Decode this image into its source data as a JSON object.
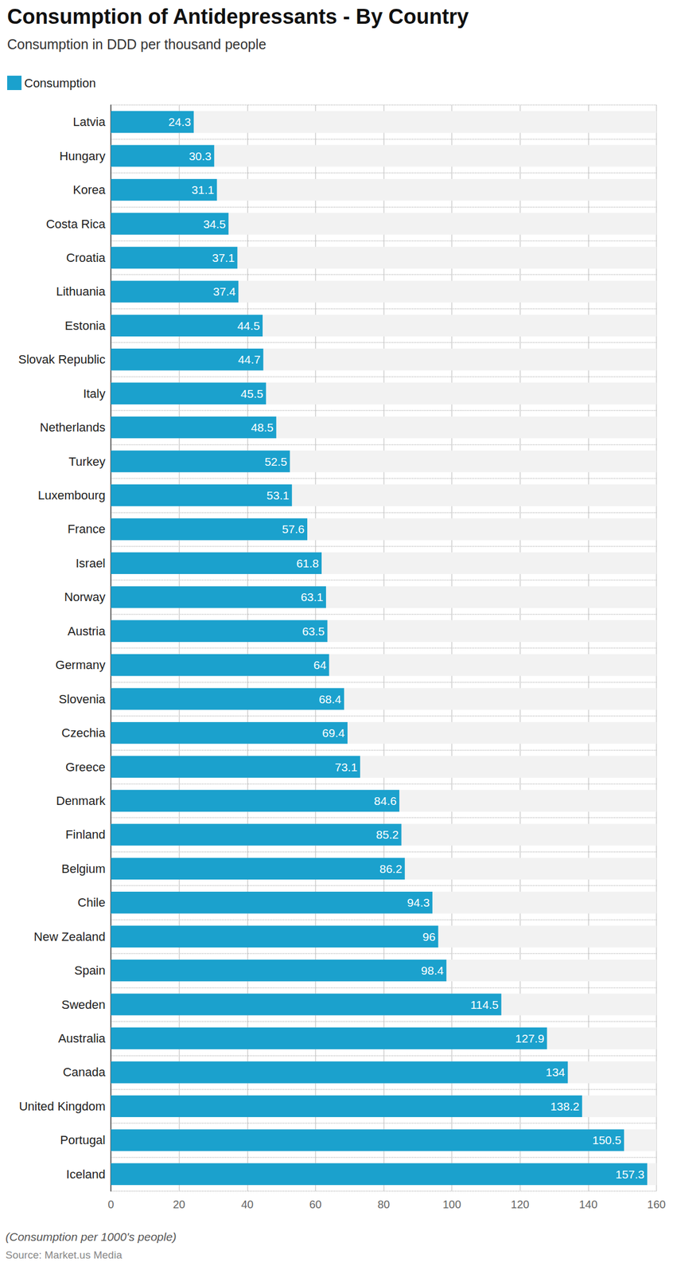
{
  "chart_data": {
    "type": "bar",
    "orientation": "horizontal",
    "title": "Consumption of Antidepressants - By Country",
    "subtitle": "Consumption in DDD per thousand people",
    "note": "(Consumption per 1000's people)",
    "source": "Source: Market.us Media",
    "categories": [
      "Latvia",
      "Hungary",
      "Korea",
      "Costa Rica",
      "Croatia",
      "Lithuania",
      "Estonia",
      "Slovak Republic",
      "Italy",
      "Netherlands",
      "Turkey",
      "Luxembourg",
      "France",
      "Israel",
      "Norway",
      "Austria",
      "Germany",
      "Slovenia",
      "Czechia",
      "Greece",
      "Denmark",
      "Finland",
      "Belgium",
      "Chile",
      "New Zealand",
      "Spain",
      "Sweden",
      "Australia",
      "Canada",
      "United Kingdom",
      "Portugal",
      "Iceland"
    ],
    "series": [
      {
        "name": "Consumption",
        "color": "#1ba1cd",
        "values": [
          24.3,
          30.3,
          31.1,
          34.5,
          37.1,
          37.4,
          44.5,
          44.7,
          45.5,
          48.5,
          52.5,
          53.1,
          57.6,
          61.8,
          63.1,
          63.5,
          64,
          68.4,
          69.4,
          73.1,
          84.6,
          85.2,
          86.2,
          94.3,
          96,
          98.4,
          114.5,
          127.9,
          134,
          138.2,
          150.5,
          157.3
        ]
      }
    ],
    "xlim": [
      0,
      160
    ],
    "xticks": [
      0,
      20,
      40,
      60,
      80,
      100,
      120,
      140,
      160
    ],
    "grid": true,
    "legend": "top-left",
    "data_labels": true
  }
}
